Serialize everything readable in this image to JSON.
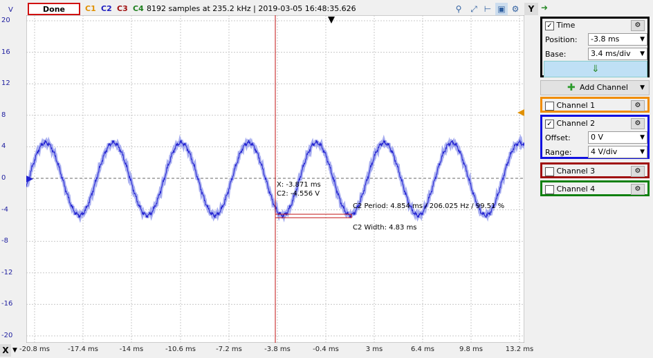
{
  "toolbar": {
    "status": "Done",
    "channels": [
      {
        "label": "C1",
        "color": "#e09000"
      },
      {
        "label": "C2",
        "color": "#2020c0"
      },
      {
        "label": "C3",
        "color": "#a01010"
      },
      {
        "label": "C4",
        "color": "#208020"
      }
    ],
    "info": "8192 samples at 235.2 kHz | 2019-03-05 16:48:35.626",
    "y_button": "Y",
    "icons": [
      "zoom-icon",
      "cursor-icon",
      "measure-icon",
      "screen-icon",
      "settings-icon"
    ]
  },
  "plot": {
    "y_unit": "V",
    "y_ticks": [
      "20",
      "16",
      "12",
      "8",
      "4",
      "0",
      "-4",
      "-8",
      "-12",
      "-16",
      "-20"
    ],
    "x_button": "X",
    "x_ticks": [
      "-20.8 ms",
      "-17.4 ms",
      "-14 ms",
      "-10.6 ms",
      "-7.2 ms",
      "-3.8 ms",
      "-0.4 ms",
      "3 ms",
      "6.4 ms",
      "9.8 ms",
      "13.2 ms"
    ],
    "cursor": {
      "x_label": "X: -3.871 ms",
      "c2_label": "C2: -4.556 V"
    },
    "period_label": "C2 Period: 4.854 ms / 206.025 Hz / 99.51 %",
    "width_label": "C2 Width: 4.83 ms",
    "wave_color": "#2020d0",
    "cursor_color": "#c01010"
  },
  "chart_data": {
    "type": "line",
    "xlim": [
      -22.5,
      13.2
    ],
    "ylim": [
      -20,
      20
    ],
    "series": [
      {
        "period_ms": 4.854,
        "amplitude_v": 4.6,
        "offset_v": 0
      }
    ]
  },
  "time_panel": {
    "title": "Time",
    "checked": true,
    "position_label": "Position:",
    "position_value": "-3.8 ms",
    "base_label": "Base:",
    "base_value": "3.4 ms/div",
    "border_color": "#000000"
  },
  "add_channel": {
    "label": "Add Channel"
  },
  "channels_panel": [
    {
      "title": "Channel 1",
      "checked": false,
      "border_color": "#f08c00"
    },
    {
      "title": "Channel 2",
      "checked": true,
      "border_color": "#1010e0",
      "offset_label": "Offset:",
      "offset_value": "0 V",
      "range_label": "Range:",
      "range_value": "4 V/div"
    },
    {
      "title": "Channel 3",
      "checked": false,
      "border_color": "#a01010"
    },
    {
      "title": "Channel 4",
      "checked": false,
      "border_color": "#108010"
    }
  ]
}
